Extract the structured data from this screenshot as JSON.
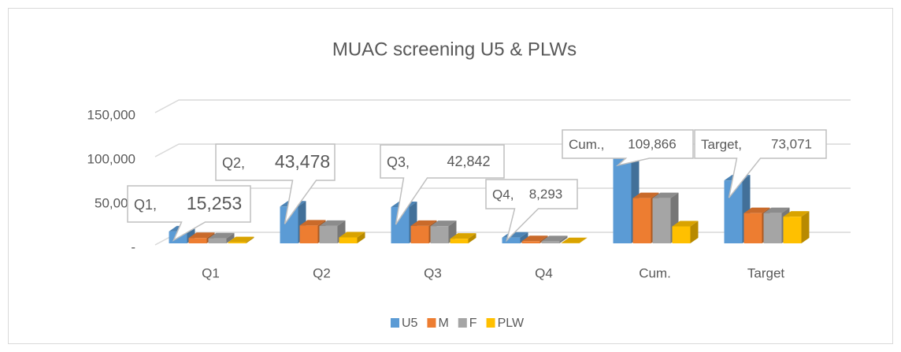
{
  "chart_data": {
    "type": "bar3d",
    "title": "MUAC screening U5 & PLWs",
    "categories": [
      "Q1",
      "Q2",
      "Q3",
      "Q4",
      "Cum.",
      "Target"
    ],
    "series": [
      {
        "name": "U5",
        "color": "#5b9bd5",
        "values": [
          15253,
          43478,
          42842,
          8293,
          109866,
          73071
        ],
        "value_labels": [
          "15,253",
          "43,478",
          "42,842",
          "8,293",
          "109,866",
          "73,071"
        ]
      },
      {
        "name": "M",
        "color": "#ed7d31",
        "values": [
          7800,
          22000,
          21500,
          4200,
          53000,
          36000
        ]
      },
      {
        "name": "F",
        "color": "#a5a5a5",
        "values": [
          7400,
          21500,
          21300,
          4100,
          53000,
          36000
        ]
      },
      {
        "name": "PLW",
        "color": "#ffc000",
        "values": [
          3000,
          8500,
          7000,
          2000,
          21000,
          32000
        ]
      }
    ],
    "label_separator": ",",
    "ylim": [
      0,
      150000
    ],
    "yticks": [
      {
        "value": 0,
        "label": "-"
      },
      {
        "value": 50000,
        "label": "50,000"
      },
      {
        "value": 100000,
        "label": "100,000"
      },
      {
        "value": 150000,
        "label": "150,000"
      }
    ],
    "grid": true,
    "legend": "bottom"
  }
}
